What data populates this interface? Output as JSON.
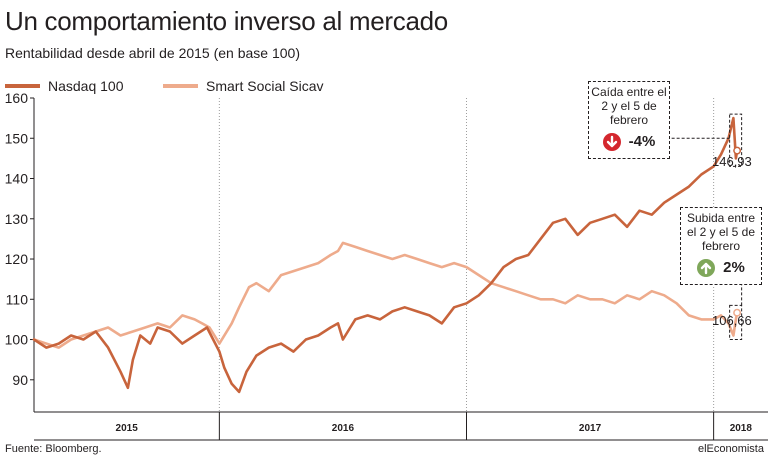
{
  "title": "Un comportamiento inverso al mercado",
  "subtitle": "Rentabilidad desde abril de 2015 (en base 100)",
  "source": "Fuente: Bloomberg.",
  "brand": "elEconomista",
  "colors": {
    "nasdaq": "#c8643c",
    "smart": "#eeab8c",
    "down": "#d4272e",
    "up": "#7fa75a",
    "grid": "#9d9d9d",
    "text": "#231f20"
  },
  "callouts": {
    "fall": {
      "text": "Caída entre el 2 y el 5 de febrero",
      "pct": "-4%",
      "icon": "arrow-down-icon"
    },
    "rise": {
      "text": "Subida entre el 2 y el 5 de febrero",
      "pct": "2%",
      "icon": "arrow-up-icon"
    }
  },
  "end_values": {
    "nasdaq": "146,93",
    "smart": "106,66"
  },
  "chart_data": {
    "type": "line",
    "x_unit": "year",
    "xlim": [
      2015.25,
      2018.22
    ],
    "ylim": [
      82,
      160
    ],
    "yticks": [
      90,
      100,
      110,
      120,
      130,
      140,
      150,
      160
    ],
    "ytick_labels": [
      "90",
      "100",
      "110",
      "120",
      "130",
      "140",
      "150",
      "160"
    ],
    "year_boundaries": [
      2016,
      2017,
      2018
    ],
    "xtick_labels": [
      "2015",
      "2016",
      "2017",
      "2018"
    ],
    "grid": "vertical dotted lines at year boundaries",
    "legend_position": "top-left",
    "series": [
      {
        "name": "Nasdaq 100",
        "x": [
          2015.25,
          2015.3,
          2015.35,
          2015.4,
          2015.45,
          2015.5,
          2015.55,
          2015.6,
          2015.63,
          2015.65,
          2015.68,
          2015.72,
          2015.75,
          2015.8,
          2015.85,
          2015.9,
          2015.95,
          2016.0,
          2016.02,
          2016.05,
          2016.08,
          2016.11,
          2016.15,
          2016.2,
          2016.25,
          2016.3,
          2016.35,
          2016.4,
          2016.45,
          2016.48,
          2016.5,
          2016.53,
          2016.55,
          2016.6,
          2016.65,
          2016.7,
          2016.75,
          2016.8,
          2016.85,
          2016.9,
          2016.95,
          2017.0,
          2017.05,
          2017.1,
          2017.15,
          2017.2,
          2017.25,
          2017.3,
          2017.35,
          2017.4,
          2017.45,
          2017.5,
          2017.55,
          2017.6,
          2017.65,
          2017.7,
          2017.75,
          2017.8,
          2017.85,
          2017.9,
          2017.95,
          2018.0,
          2018.03,
          2018.06,
          2018.08,
          2018.09,
          2018.095
        ],
        "values": [
          100,
          98,
          99,
          101,
          100,
          102,
          98,
          92,
          88,
          95,
          101,
          99,
          103,
          102,
          99,
          101,
          103,
          97,
          93,
          89,
          87,
          92,
          96,
          98,
          99,
          97,
          100,
          101,
          103,
          104,
          100,
          103,
          105,
          106,
          105,
          107,
          108,
          107,
          106,
          104,
          108,
          109,
          111,
          114,
          118,
          120,
          121,
          125,
          129,
          130,
          126,
          129,
          130,
          131,
          128,
          132,
          131,
          134,
          136,
          138,
          141,
          143,
          146,
          150,
          155,
          145,
          146.93
        ]
      },
      {
        "name": "Smart Social Sicav",
        "x": [
          2015.25,
          2015.3,
          2015.35,
          2015.4,
          2015.45,
          2015.5,
          2015.55,
          2015.6,
          2015.65,
          2015.7,
          2015.75,
          2015.8,
          2015.85,
          2015.9,
          2015.93,
          2015.96,
          2016.0,
          2016.05,
          2016.08,
          2016.12,
          2016.15,
          2016.2,
          2016.25,
          2016.3,
          2016.35,
          2016.4,
          2016.45,
          2016.48,
          2016.5,
          2016.55,
          2016.6,
          2016.65,
          2016.7,
          2016.75,
          2016.8,
          2016.85,
          2016.9,
          2016.95,
          2017.0,
          2017.05,
          2017.1,
          2017.15,
          2017.2,
          2017.25,
          2017.3,
          2017.35,
          2017.4,
          2017.45,
          2017.5,
          2017.55,
          2017.6,
          2017.65,
          2017.7,
          2017.75,
          2017.8,
          2017.85,
          2017.9,
          2017.95,
          2018.0,
          2018.03,
          2018.06,
          2018.08,
          2018.09,
          2018.095
        ],
        "values": [
          100,
          99,
          98,
          100,
          101,
          102,
          103,
          101,
          102,
          103,
          104,
          103,
          106,
          105,
          104,
          103,
          99,
          104,
          108,
          113,
          114,
          112,
          116,
          117,
          118,
          119,
          121,
          122,
          124,
          123,
          122,
          121,
          120,
          121,
          120,
          119,
          118,
          119,
          118,
          116,
          114,
          113,
          112,
          111,
          110,
          110,
          109,
          111,
          110,
          110,
          109,
          111,
          110,
          112,
          111,
          109,
          106,
          105,
          105,
          106,
          104,
          101,
          105,
          106.66
        ]
      }
    ]
  }
}
